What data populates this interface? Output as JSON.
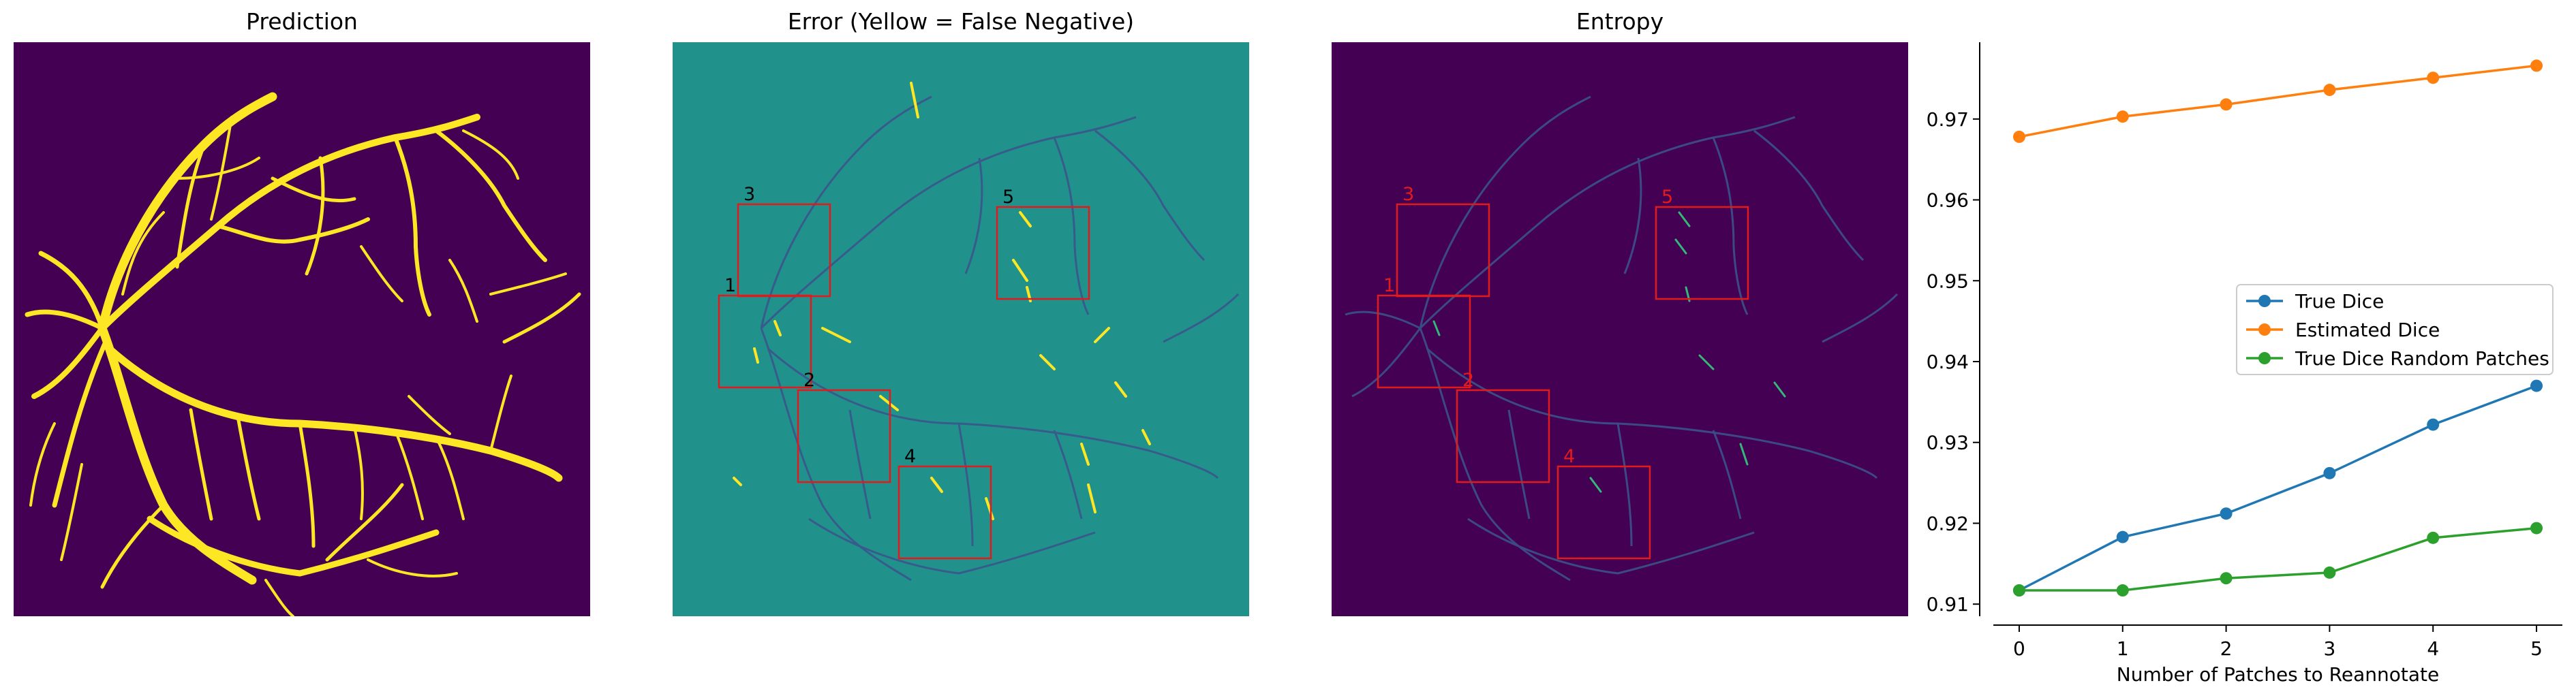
{
  "panels": [
    {
      "title": "Prediction",
      "background": "#440154",
      "vessel_color": "#fde725"
    },
    {
      "title": "Error (Yellow = False Negative)",
      "background": "#21918c",
      "fn_color": "#fde725",
      "fp_color": "#3b528b"
    },
    {
      "title": "Entropy",
      "background": "#440154",
      "edge_color": "#3b528b",
      "highlight_color": "#35b779"
    }
  ],
  "patch_boxes": {
    "color": "#e31a1c",
    "labels": [
      "1",
      "2",
      "3",
      "4",
      "5"
    ],
    "error_label_color": "#000000",
    "entropy_label_color": "#e31a1c"
  },
  "chart_data": {
    "type": "line",
    "xlabel": "Number of Patches to Reannotate",
    "ylabel": "",
    "x": [
      0,
      1,
      2,
      3,
      4,
      5
    ],
    "xticks": [
      "0",
      "1",
      "2",
      "3",
      "4",
      "5"
    ],
    "yticks": [
      "0.91",
      "0.92",
      "0.93",
      "0.94",
      "0.95",
      "0.96",
      "0.97"
    ],
    "ylim": [
      0.9085,
      0.9795
    ],
    "xlim": [
      -0.25,
      5.25
    ],
    "grid": false,
    "legend_position": "center-right",
    "series": [
      {
        "name": "True Dice",
        "color": "#1f77b4",
        "values": [
          0.9117,
          0.9183,
          0.9212,
          0.9262,
          0.9322,
          0.937
        ]
      },
      {
        "name": "Estimated Dice",
        "color": "#ff7f0e",
        "values": [
          0.9678,
          0.9703,
          0.9718,
          0.9736,
          0.9751,
          0.9766
        ]
      },
      {
        "name": "True Dice Random Patches",
        "color": "#2ca02c",
        "values": [
          0.9117,
          0.9117,
          0.9132,
          0.9139,
          0.9182,
          0.9194
        ]
      }
    ]
  }
}
